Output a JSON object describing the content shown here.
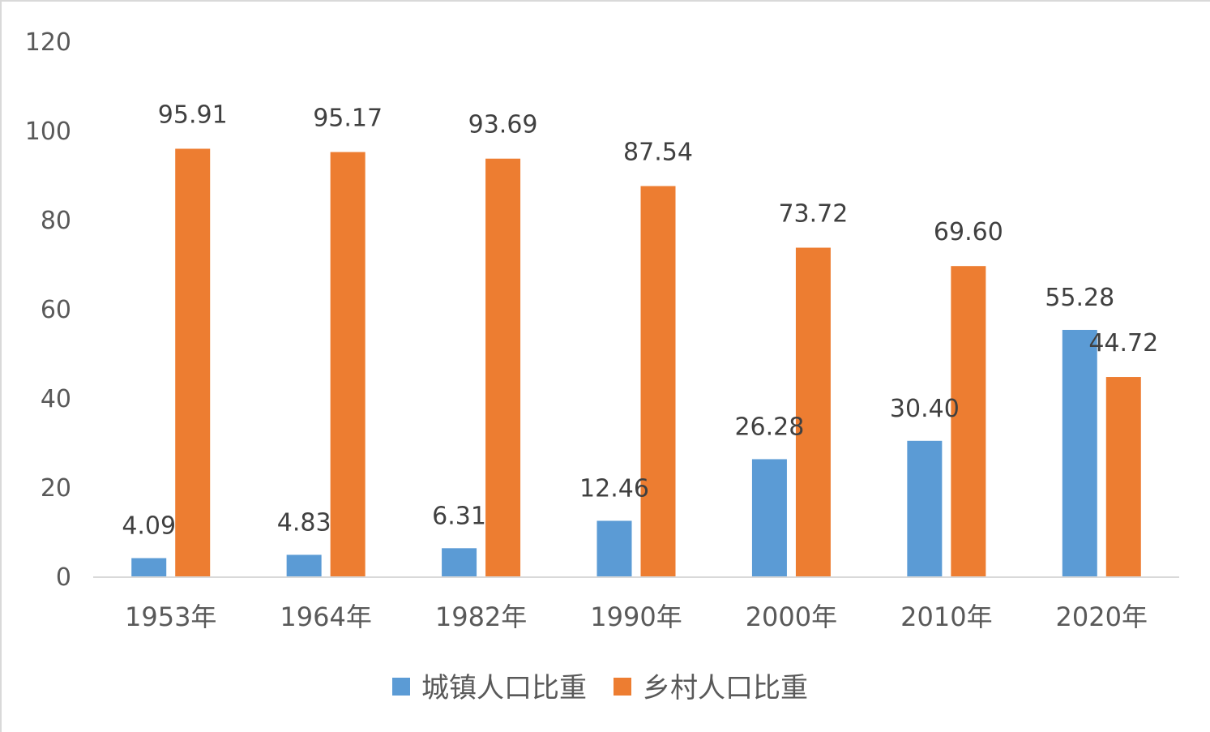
{
  "chart_data": {
    "type": "bar",
    "categories": [
      "1953年",
      "1964年",
      "1982年",
      "1990年",
      "2000年",
      "2010年",
      "2020年"
    ],
    "series": [
      {
        "name": "城镇人口比重",
        "color": "#5b9bd5",
        "values": [
          4.09,
          4.83,
          6.31,
          12.46,
          26.28,
          30.4,
          55.28
        ],
        "labels": [
          "4.09",
          "4.83",
          "6.31",
          "12.46",
          "26.28",
          "30.40",
          "55.28"
        ]
      },
      {
        "name": "乡村人口比重",
        "color": "#ed7d31",
        "values": [
          95.91,
          95.17,
          93.69,
          87.54,
          73.72,
          69.6,
          44.72
        ],
        "labels": [
          "95.91",
          "95.17",
          "93.69",
          "87.54",
          "73.72",
          "69.60",
          "44.72"
        ]
      }
    ],
    "yticks": [
      "0",
      "20",
      "40",
      "60",
      "80",
      "100",
      "120"
    ],
    "ylim": [
      0,
      120
    ],
    "grid": false,
    "legend_position": "bottom"
  }
}
